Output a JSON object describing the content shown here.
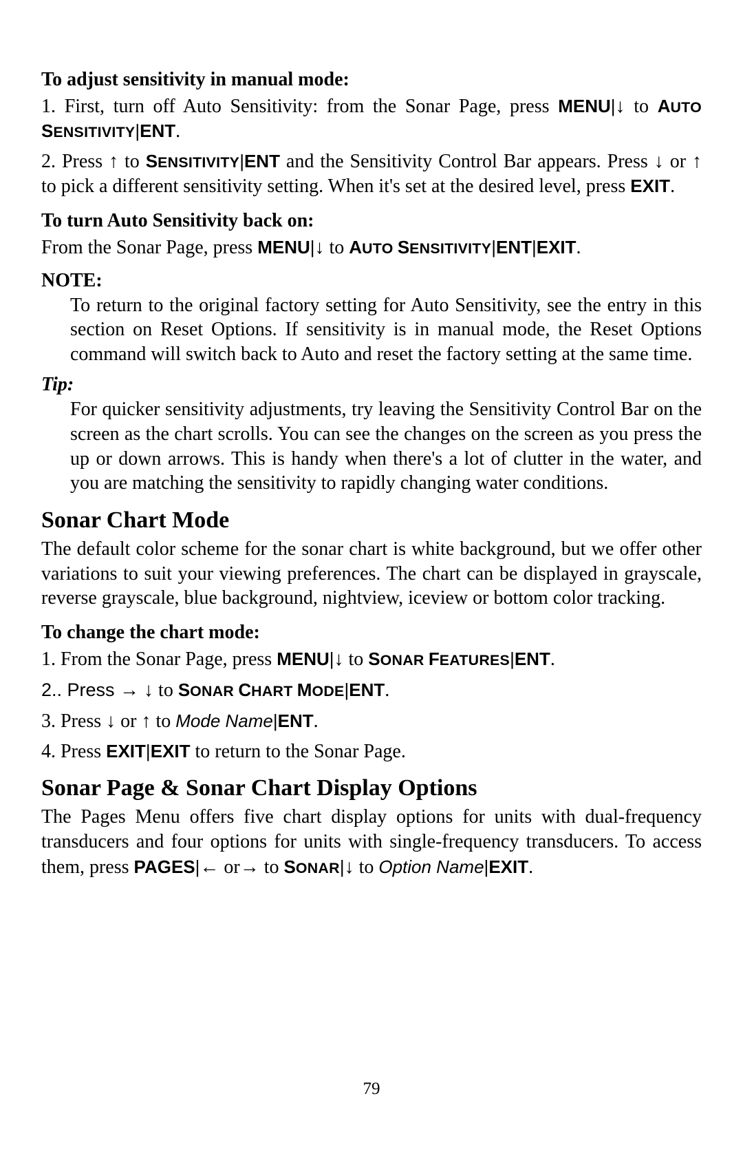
{
  "page_number": "79",
  "sec1_heading": "To adjust sensitivity in manual mode:",
  "step1_pre": "1. First, turn off Auto Sensitivity: from the Sonar Page, press ",
  "k_menu": "MENU",
  "pipe": "|",
  "arrow_down": "↓",
  "arrow_up": "↑",
  "arrow_right": "→",
  "arrow_left": "←",
  "step1_to": " to ",
  "k_auto_sens_A": "A",
  "k_auto_sens_rest1": "UTO ",
  "k_auto_sens_S": "S",
  "k_auto_sens_rest2": "ENSITIVITY",
  "k_ent": "ENT",
  "period": ".",
  "step2_a": "2. Press ",
  "step2_b": " to ",
  "k_sens_S": "S",
  "k_sens_rest": "ENSITIVITY",
  "step2_c": " and the Sensitivity Control Bar appears. Press ",
  "step2_d": " or ",
  "step2_e": " to pick a different sensitivity setting. When it's set at the desired level, press ",
  "k_exit": "EXIT",
  "sec2_heading": "To turn Auto Sensitivity back on:",
  "sec2_text_a": "From the Sonar Page, press ",
  "note_label": "NOTE:",
  "note_body": "To return to the original factory setting for Auto Sensitivity, see the entry in this section on Reset Options. If sensitivity is in manual mode, the Reset Options command will switch back to Auto and reset the factory setting at the same time.",
  "tip_label": "Tip:",
  "tip_body": "For quicker sensitivity adjustments, try leaving the Sensitivity Control Bar on the screen as the chart scrolls. You can see the changes on the screen as you press the up or down arrows. This is handy when there's a lot of clutter in the water, and you are matching the sensitivity to rapidly changing water conditions.",
  "chartmode_heading": "Sonar Chart Mode",
  "chartmode_body": "The default color scheme for the sonar chart is white background, but we offer other variations to suit your viewing preferences. The chart can be displayed in grayscale, reverse grayscale, blue background, nightview, iceview or bottom color tracking.",
  "changechart_heading": "To change the chart mode:",
  "cc_step1_a": "1. From the Sonar Page, press ",
  "k_sonar_feat_S": "S",
  "k_sonar_feat_rest1": "ONAR ",
  "k_sonar_feat_F": "F",
  "k_sonar_feat_rest2": "EATURES",
  "cc_step2_a": "2.. Press ",
  "k_sonar_chart_S1": "S",
  "k_sonar_chart_rest1": "ONAR ",
  "k_sonar_chart_C": "C",
  "k_sonar_chart_rest2": "HART ",
  "k_sonar_chart_M": "M",
  "k_sonar_chart_rest3": "ODE",
  "cc_step3_a": "3. Press ",
  "cc_step3_mode": "Mode Name",
  "cc_step4_a": "4. Press ",
  "cc_step4_b": " to return to the Sonar Page.",
  "disp_heading": "Sonar Page & Sonar Chart Display Options",
  "disp_body_a": "The Pages Menu offers five chart display options for units with dual-frequency transducers and four options for units with single-frequency transducers. To access them, press ",
  "k_pages": "PAGES",
  "disp_or": " or",
  "k_sonar_S": "S",
  "k_sonar_rest": "ONAR",
  "disp_option": "Option Name"
}
